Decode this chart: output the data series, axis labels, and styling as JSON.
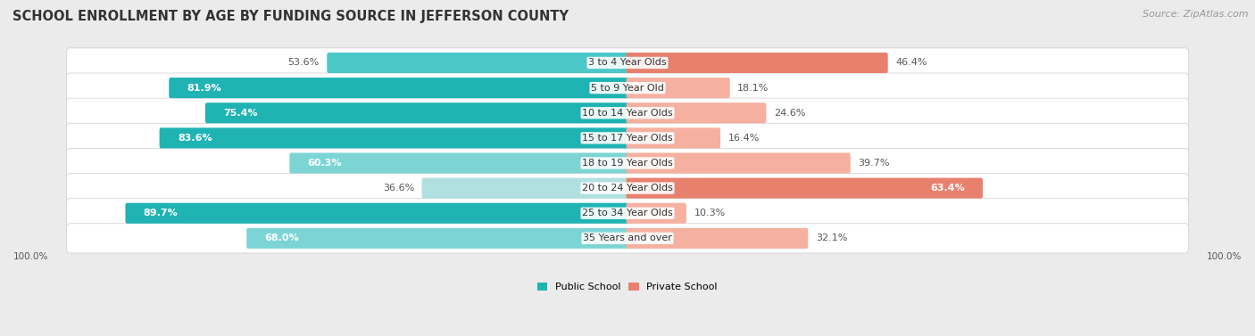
{
  "title": "SCHOOL ENROLLMENT BY AGE BY FUNDING SOURCE IN JEFFERSON COUNTY",
  "source": "Source: ZipAtlas.com",
  "categories": [
    "3 to 4 Year Olds",
    "5 to 9 Year Old",
    "10 to 14 Year Olds",
    "15 to 17 Year Olds",
    "18 to 19 Year Olds",
    "20 to 24 Year Olds",
    "25 to 34 Year Olds",
    "35 Years and over"
  ],
  "public_values": [
    53.6,
    81.9,
    75.4,
    83.6,
    60.3,
    36.6,
    89.7,
    68.0
  ],
  "private_values": [
    46.4,
    18.1,
    24.6,
    16.4,
    39.7,
    63.4,
    10.3,
    32.1
  ],
  "public_colors": [
    "#4dc8c8",
    "#1fb3b3",
    "#1fb3b3",
    "#1fb3b3",
    "#7dd4d4",
    "#b0e0e0",
    "#1fb3b3",
    "#7dd4d4"
  ],
  "private_colors": [
    "#e8806e",
    "#f5b0a0",
    "#f5b0a0",
    "#f5b0a0",
    "#f5b0a0",
    "#e8806e",
    "#f5b0a0",
    "#f5b0a0"
  ],
  "pub_label_white": [
    false,
    true,
    true,
    true,
    true,
    false,
    true,
    true
  ],
  "priv_label_white": [
    false,
    false,
    false,
    false,
    false,
    true,
    false,
    false
  ],
  "public_label": "Public School",
  "private_label": "Private School",
  "public_legend_color": "#1fb3b3",
  "private_legend_color": "#e8806e",
  "bg_color": "#ebebeb",
  "title_fontsize": 10.5,
  "source_fontsize": 8,
  "cat_fontsize": 8,
  "value_fontsize": 8
}
